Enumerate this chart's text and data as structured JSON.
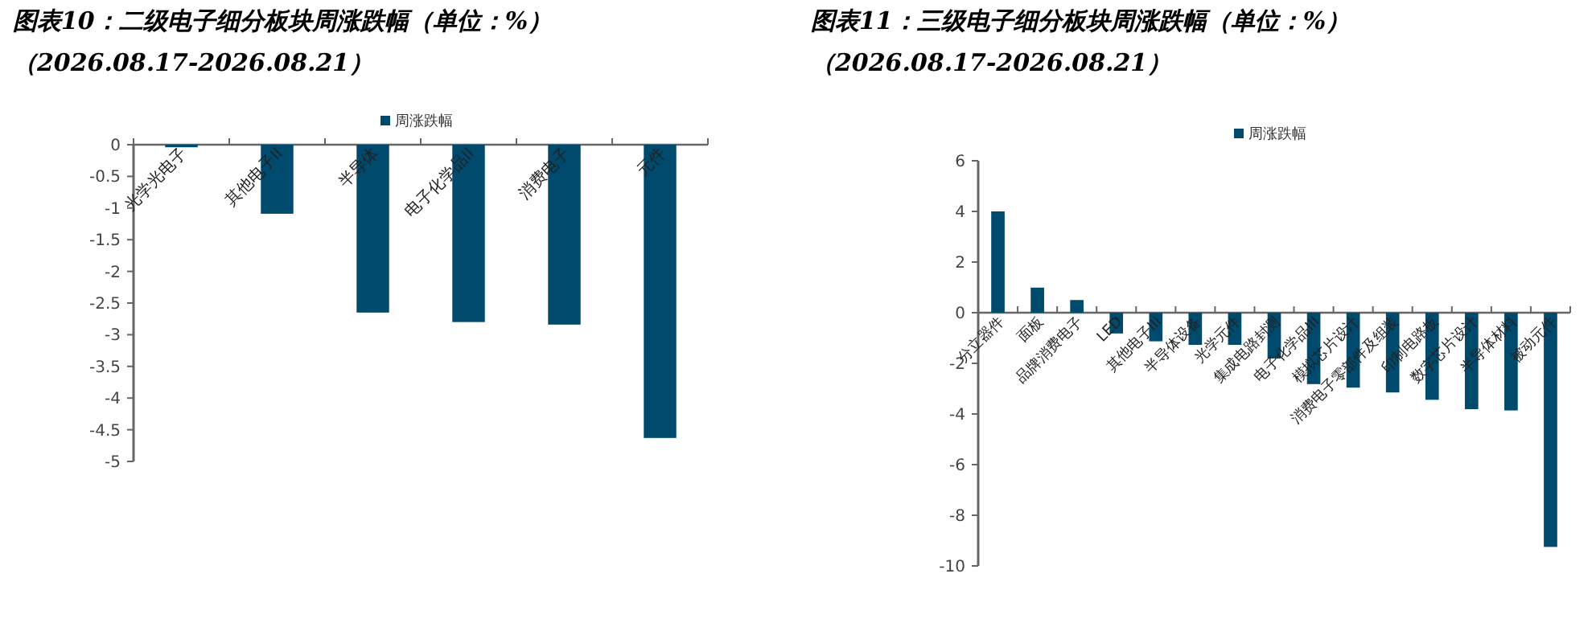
{
  "chart_data": [
    {
      "type": "bar",
      "title": "图表10：二级电子细分板块周涨跌幅（单位：%）",
      "subtitle": "（2026.08.17-2026.08.21）",
      "categories": [
        "光学光电子",
        "其他电子II",
        "半导体",
        "电子化学品II",
        "消费电子",
        "元件"
      ],
      "series": [
        {
          "name": "周涨跌幅",
          "color": "#004a6e",
          "values": [
            -0.03,
            -1.09,
            -2.65,
            -2.8,
            -2.84,
            -4.63
          ]
        }
      ],
      "ylim": [
        -5,
        0
      ],
      "yticks": [
        -5,
        -4.5,
        -4,
        -3.5,
        -3,
        -2.5,
        -2,
        -1.5,
        -1,
        -0.5,
        0
      ],
      "legend": "top",
      "grid": false
    },
    {
      "type": "bar",
      "title": "图表11：三级电子细分板块周涨跌幅（单位：%）",
      "subtitle": "（2026.08.17-2026.08.21）",
      "categories": [
        "分立器件",
        "面板",
        "品牌消费电子",
        "LED",
        "其他电子III",
        "半导体设备",
        "光学元件",
        "集成电路封测",
        "电子化学品III",
        "模拟芯片设计",
        "消费电子零部件及组装",
        "印制电路板",
        "数字芯片设计",
        "半导体材料",
        "被动元件"
      ],
      "series": [
        {
          "name": "周涨跌幅",
          "color": "#004a6e",
          "values": [
            4.0,
            0.99,
            0.5,
            -0.82,
            -1.13,
            -1.27,
            -1.27,
            -1.81,
            -2.82,
            -2.96,
            -3.15,
            -3.44,
            -3.81,
            -3.86,
            -9.25
          ]
        }
      ],
      "ylim": [
        -10,
        6
      ],
      "yticks": [
        -10,
        -8,
        -6,
        -4,
        -2,
        0,
        2,
        4,
        6
      ],
      "legend": "top",
      "grid": false
    }
  ]
}
